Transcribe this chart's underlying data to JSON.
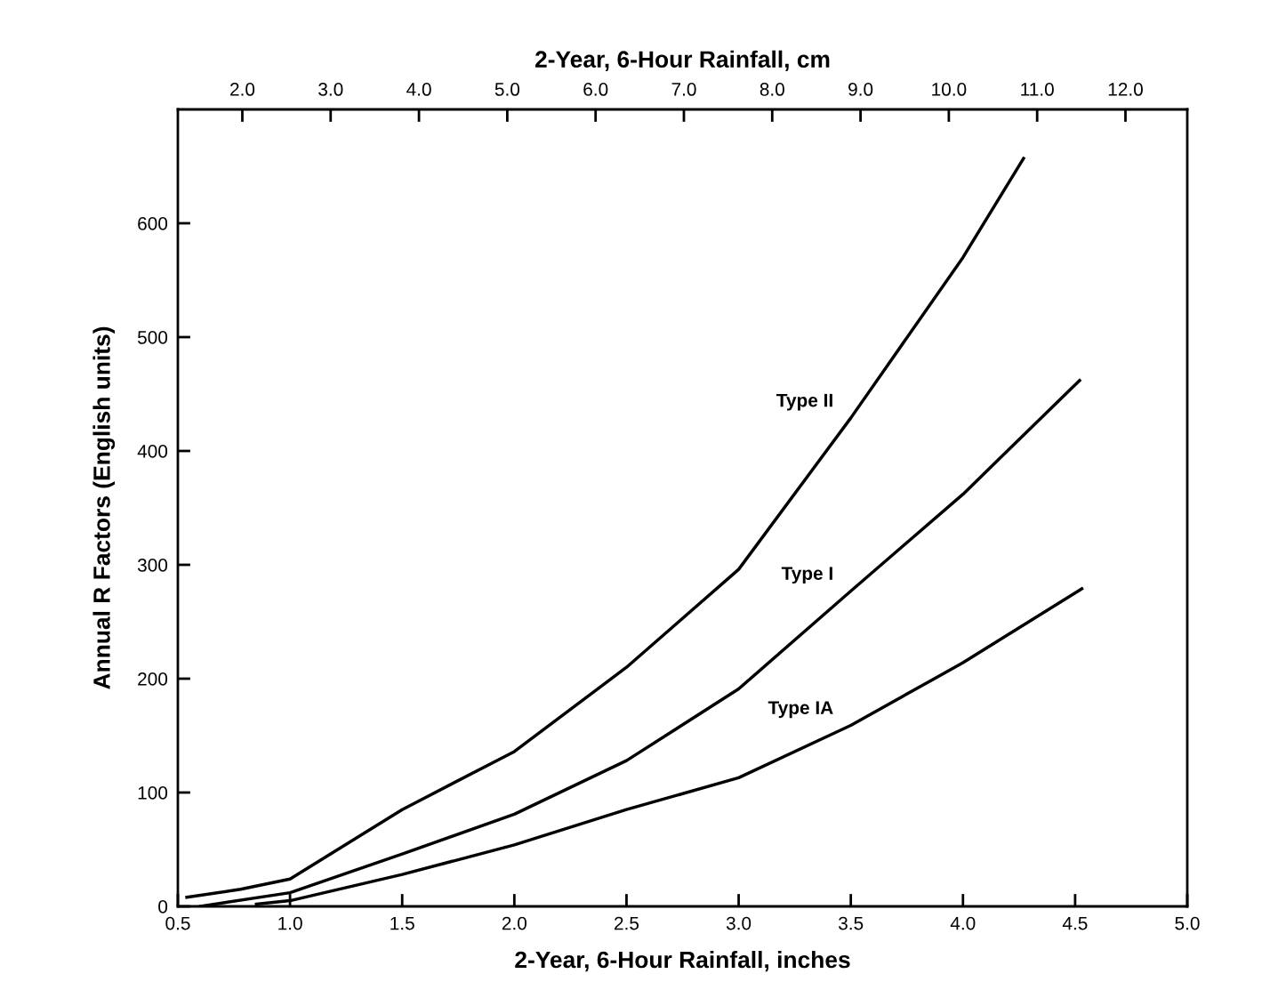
{
  "chart_data": {
    "type": "line",
    "xlabel": "2-Year, 6-Hour Rainfall, inches",
    "x2label": "2-Year, 6-Hour Rainfall, cm",
    "ylabel": "Annual R Factors (English units)",
    "xlim": [
      0.5,
      5.0
    ],
    "xticks": [
      {
        "value": 0.5,
        "label": "0.5"
      },
      {
        "value": 1.0,
        "label": "1.0"
      },
      {
        "value": 1.5,
        "label": "1.5"
      },
      {
        "value": 2.0,
        "label": "2.0"
      },
      {
        "value": 2.5,
        "label": "2.5"
      },
      {
        "value": 3.0,
        "label": "3.0"
      },
      {
        "value": 3.5,
        "label": "3.5"
      },
      {
        "value": 4.0,
        "label": "4.0"
      },
      {
        "value": 4.5,
        "label": "4.5"
      },
      {
        "value": 5.0,
        "label": "5.0"
      }
    ],
    "x2lim": [
      1.27,
      12.7
    ],
    "x2ticks": [
      {
        "value": 2,
        "label": "2.0"
      },
      {
        "value": 3,
        "label": "3.0"
      },
      {
        "value": 4,
        "label": "4.0"
      },
      {
        "value": 5,
        "label": "5.0"
      },
      {
        "value": 6,
        "label": "6.0"
      },
      {
        "value": 7,
        "label": "7.0"
      },
      {
        "value": 8,
        "label": "8.0"
      },
      {
        "value": 9,
        "label": "9.0"
      },
      {
        "value": 10,
        "label": "10.0"
      },
      {
        "value": 11,
        "label": "11.0"
      },
      {
        "value": 12,
        "label": "12.0"
      }
    ],
    "ylim": [
      0,
      700
    ],
    "yticks": [
      0,
      100,
      200,
      300,
      400,
      500,
      600
    ],
    "grid": false,
    "legend": false,
    "marker": "none",
    "line_style": "solid",
    "series": [
      {
        "name": "Type II",
        "color": "#000000",
        "x": [
          0.54,
          0.78,
          1.0,
          1.5,
          2.0,
          2.5,
          3.0,
          3.5,
          4.0,
          4.27
        ],
        "values": [
          8,
          15,
          24,
          85,
          136,
          210,
          296,
          429,
          570,
          657
        ]
      },
      {
        "name": "Type I",
        "color": "#000000",
        "x": [
          0.6,
          1.0,
          1.5,
          2.0,
          2.5,
          3.0,
          3.5,
          4.0,
          4.52
        ],
        "values": [
          0,
          12,
          46,
          81,
          128,
          191,
          277,
          362,
          462
        ]
      },
      {
        "name": "Type IA",
        "color": "#000000",
        "x": [
          0.85,
          1.0,
          1.5,
          2.0,
          2.5,
          3.0,
          3.5,
          4.0,
          4.53
        ],
        "values": [
          2,
          5,
          28,
          54,
          85,
          113,
          159,
          214,
          279
        ]
      }
    ]
  }
}
